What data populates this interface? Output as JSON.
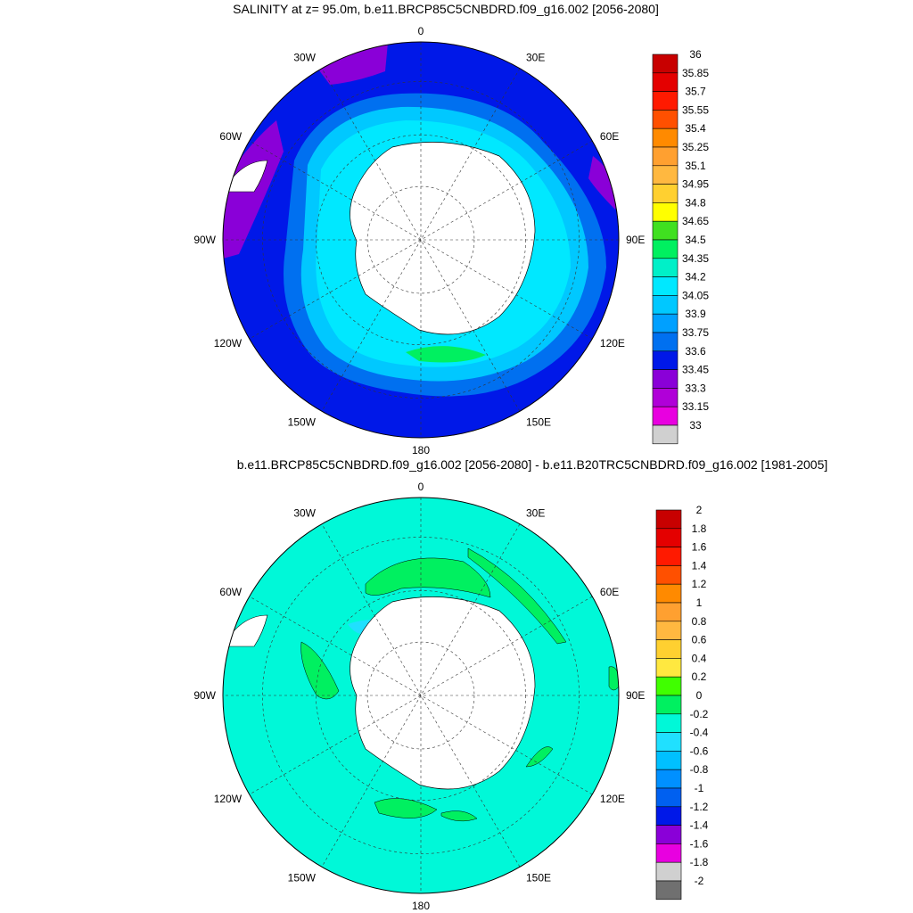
{
  "panels": [
    {
      "title": "SALINITY at z=  95.0m, b.e11.BRCP85C5CNBDRD.f09_g16.002 [2056-2080]",
      "field_color": "#0018e8",
      "colorbar": {
        "labels": [
          "36",
          "35.85",
          "35.7",
          "35.55",
          "35.4",
          "35.25",
          "35.1",
          "34.95",
          "34.8",
          "34.65",
          "34.5",
          "34.35",
          "34.2",
          "34.05",
          "33.9",
          "33.75",
          "33.6",
          "33.45",
          "33.3",
          "33.15",
          "33"
        ],
        "colors": [
          "#c80000",
          "#e40000",
          "#ff1a00",
          "#ff5000",
          "#ff8a00",
          "#ffa030",
          "#ffb840",
          "#ffd030",
          "#ffff00",
          "#40e020",
          "#00f060",
          "#00f0c8",
          "#00e8ff",
          "#00c8ff",
          "#00a0ff",
          "#0070f0",
          "#0018e8",
          "#8a00d8",
          "#b000d8",
          "#e800e0",
          "#d0d0d0",
          "#707070"
        ]
      },
      "features": [
        {
          "kind": "shelf-water",
          "color": "#00e8ff",
          "description": "cyan band around continent"
        },
        {
          "kind": "shelf-water",
          "color": "#00c8ff"
        },
        {
          "kind": "shelf-water",
          "color": "#0070f0"
        },
        {
          "kind": "low-salinity",
          "color": "#8a00d8"
        },
        {
          "kind": "high-salinity",
          "color": "#00f060"
        }
      ]
    },
    {
      "title": "b.e11.BRCP85C5CNBDRD.f09_g16.002 [2056-2080] - b.e11.B20TRC5CNBDRD.f09_g16.002 [1981-2005]",
      "field_color": "#00f8d8",
      "colorbar": {
        "labels": [
          "2",
          "1.8",
          "1.6",
          "1.4",
          "1.2",
          "1",
          "0.8",
          "0.6",
          "0.4",
          "0.2",
          "0",
          "-0.2",
          "-0.4",
          "-0.6",
          "-0.8",
          "-1",
          "-1.2",
          "-1.4",
          "-1.6",
          "-1.8",
          "-2"
        ],
        "colors": [
          "#c80000",
          "#e40000",
          "#ff1a00",
          "#ff5000",
          "#ff8a00",
          "#ffa030",
          "#ffb840",
          "#ffd030",
          "#ffe840",
          "#40ff00",
          "#00f060",
          "#00f8d8",
          "#20e0ff",
          "#00c0ff",
          "#0090ff",
          "#0060f0",
          "#0018e8",
          "#8a00d8",
          "#e800e0",
          "#d0d0d0",
          "#707070",
          "#707070"
        ]
      },
      "features": [
        {
          "kind": "positive-anomaly",
          "color": "#00f060"
        },
        {
          "kind": "negative-anomaly",
          "color": "#20e0ff"
        }
      ]
    }
  ],
  "longitude_labels": {
    "top": "0",
    "bottom": "180",
    "upper_left": "30W",
    "upper_right": "30E",
    "left_upper": "60W",
    "right_upper": "60E",
    "left": "90W",
    "right": "90E",
    "left_lower": "120W",
    "right_lower": "120E",
    "lower_left": "150W",
    "lower_right": "150E"
  }
}
